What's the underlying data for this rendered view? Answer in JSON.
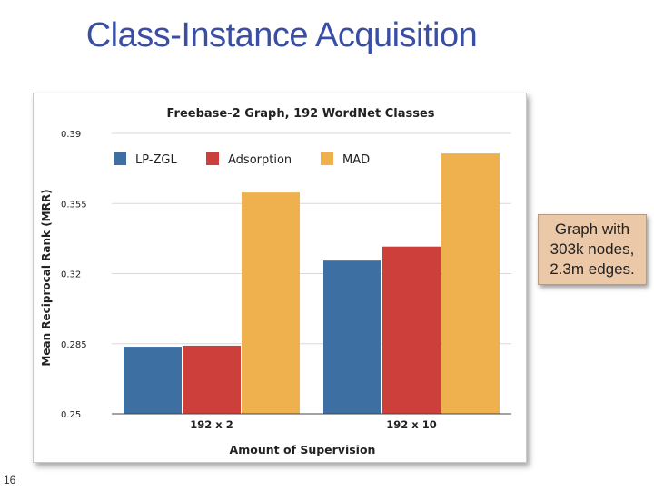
{
  "slide": {
    "title": "Class-Instance Acquisition",
    "page_number": "16",
    "callout_lines": [
      "Graph with",
      "303k nodes,",
      "2.3m edges."
    ]
  },
  "colors": {
    "LP-ZGL": "#3e6fa3",
    "Adsorption": "#cd3f3b",
    "MAD": "#efb04e",
    "title_blue": "#3a4ea3",
    "callout_bg": "#eac8a8"
  },
  "chart_data": {
    "type": "bar",
    "title": "Freebase-2 Graph, 192 WordNet Classes",
    "xlabel": "Amount of Supervision",
    "ylabel": "Mean Reciprocal Rank (MRR)",
    "categories": [
      "192 x 2",
      "192 x 10"
    ],
    "series": [
      {
        "name": "LP-ZGL",
        "values": [
          0.2835,
          0.3265
        ]
      },
      {
        "name": "Adsorption",
        "values": [
          0.284,
          0.3335
        ]
      },
      {
        "name": "MAD",
        "values": [
          0.3605,
          0.38
        ]
      }
    ],
    "ylim": [
      0.25,
      0.39
    ],
    "yticks": [
      "0.39",
      "0.355",
      "0.32",
      "0.285",
      "0.25"
    ],
    "ytick_values": [
      0.39,
      0.355,
      0.32,
      0.285,
      0.25
    ],
    "grid": true,
    "legend": "top-left"
  }
}
